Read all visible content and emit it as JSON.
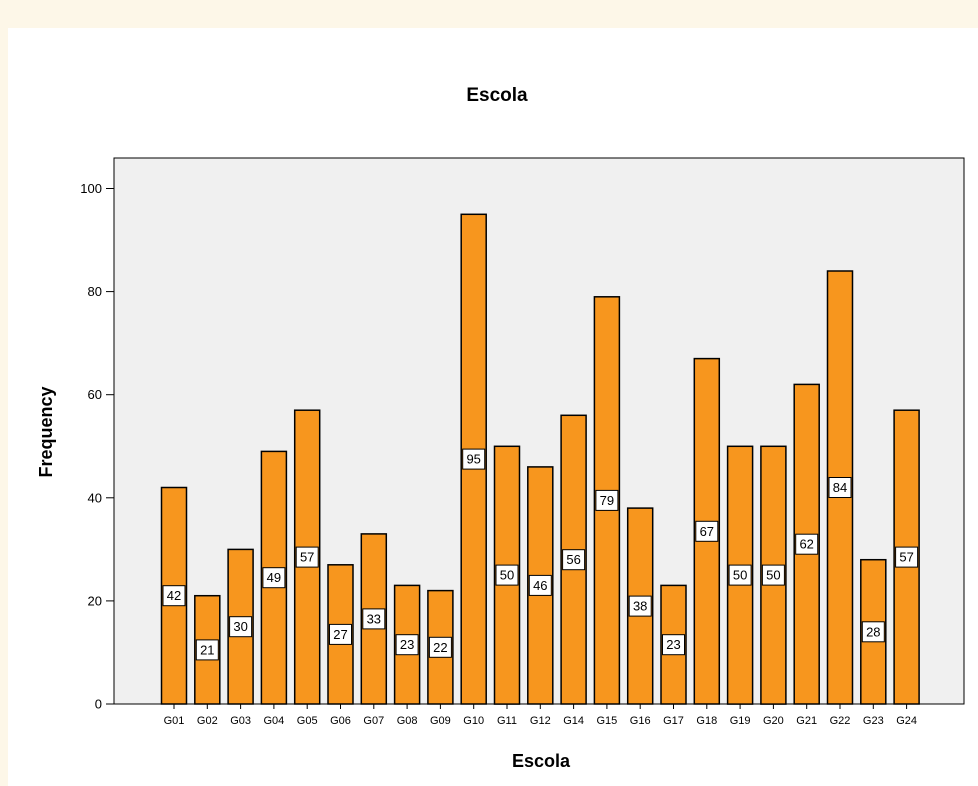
{
  "chart_data": {
    "type": "bar",
    "title": "Escola",
    "xlabel": "Escola",
    "ylabel": "Frequency",
    "ylim": [
      0,
      105
    ],
    "yticks": [
      0,
      20,
      40,
      60,
      80,
      100
    ],
    "grid": false,
    "categories": [
      "G01",
      "G02",
      "G03",
      "G04",
      "G05",
      "G06",
      "G07",
      "G08",
      "G09",
      "G10",
      "G11",
      "G12",
      "G14",
      "G15",
      "G16",
      "G17",
      "G18",
      "G19",
      "G20",
      "G21",
      "G22",
      "G23",
      "G24"
    ],
    "values": [
      42,
      21,
      30,
      49,
      57,
      27,
      33,
      23,
      22,
      95,
      50,
      46,
      56,
      79,
      38,
      23,
      67,
      50,
      50,
      62,
      84,
      28,
      57
    ],
    "colors": {
      "bar": "#f7961e",
      "plot_background": "#f0f0f0",
      "page_background": "#fdf7e8"
    }
  }
}
